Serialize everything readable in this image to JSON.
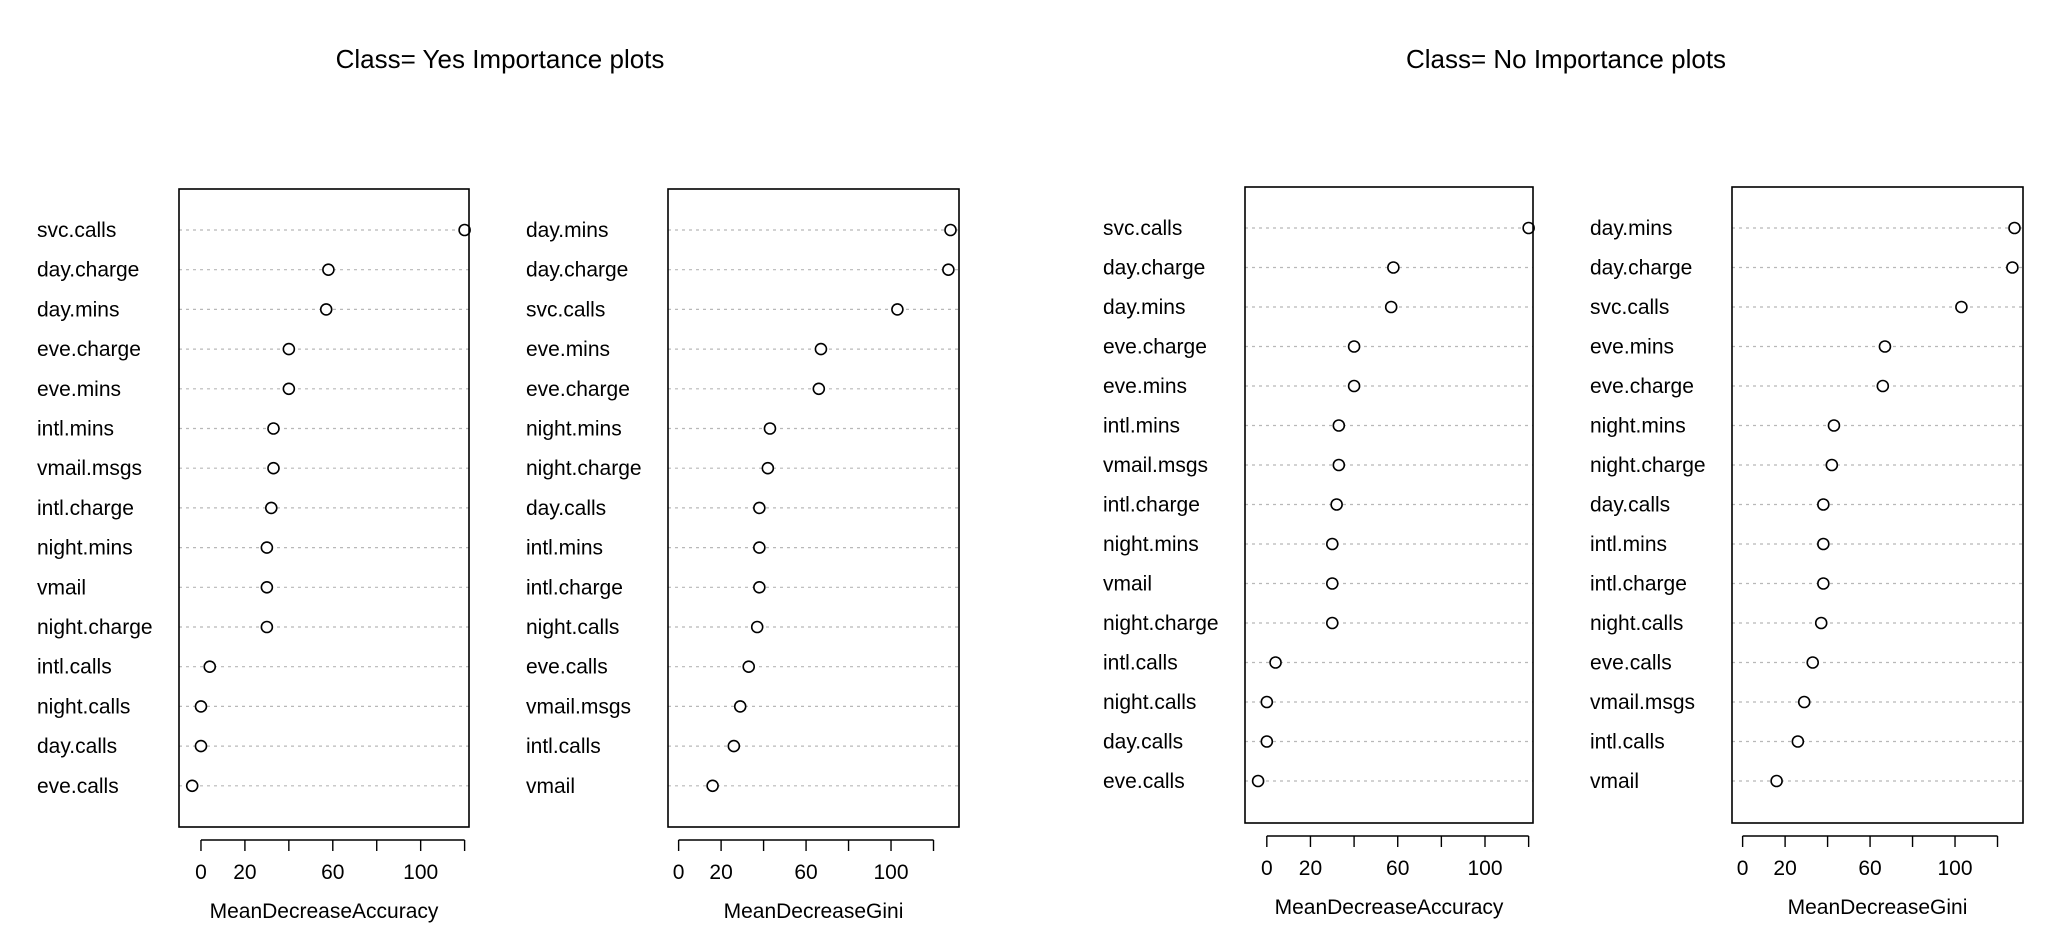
{
  "titles": [
    "Class= Yes Importance plots",
    "Class= No Importance plots"
  ],
  "chart_data": [
    {
      "type": "scatter",
      "group": "Class= Yes Importance plots",
      "xlabel": "MeanDecreaseAccuracy",
      "ylabel": "",
      "xlim": [
        -10,
        122
      ],
      "xticks": [
        0,
        20,
        60,
        100
      ],
      "grid": "dotted horizontal",
      "categories": [
        "svc.calls",
        "day.charge",
        "day.mins",
        "eve.charge",
        "eve.mins",
        "intl.mins",
        "vmail.msgs",
        "intl.charge",
        "night.mins",
        "vmail",
        "night.charge",
        "intl.calls",
        "night.calls",
        "day.calls",
        "eve.calls"
      ],
      "values": [
        120,
        58,
        57,
        40,
        40,
        33,
        33,
        32,
        30,
        30,
        30,
        4,
        0,
        0,
        -4
      ]
    },
    {
      "type": "scatter",
      "group": "Class= Yes Importance plots",
      "xlabel": "MeanDecreaseGini",
      "ylabel": "",
      "xlim": [
        -5,
        132
      ],
      "xticks": [
        0,
        20,
        60,
        100
      ],
      "grid": "dotted horizontal",
      "categories": [
        "day.mins",
        "day.charge",
        "svc.calls",
        "eve.mins",
        "eve.charge",
        "night.mins",
        "night.charge",
        "day.calls",
        "intl.mins",
        "intl.charge",
        "night.calls",
        "eve.calls",
        "vmail.msgs",
        "intl.calls",
        "vmail"
      ],
      "values": [
        128,
        127,
        103,
        67,
        66,
        43,
        42,
        38,
        38,
        38,
        37,
        33,
        29,
        26,
        16
      ]
    },
    {
      "type": "scatter",
      "group": "Class= No Importance plots",
      "xlabel": "MeanDecreaseAccuracy",
      "ylabel": "",
      "xlim": [
        -10,
        122
      ],
      "xticks": [
        0,
        20,
        60,
        100
      ],
      "grid": "dotted horizontal",
      "categories": [
        "svc.calls",
        "day.charge",
        "day.mins",
        "eve.charge",
        "eve.mins",
        "intl.mins",
        "vmail.msgs",
        "intl.charge",
        "night.mins",
        "vmail",
        "night.charge",
        "intl.calls",
        "night.calls",
        "day.calls",
        "eve.calls"
      ],
      "values": [
        120,
        58,
        57,
        40,
        40,
        33,
        33,
        32,
        30,
        30,
        30,
        4,
        0,
        0,
        -4
      ]
    },
    {
      "type": "scatter",
      "group": "Class= No Importance plots",
      "xlabel": "MeanDecreaseGini",
      "ylabel": "",
      "xlim": [
        -5,
        132
      ],
      "xticks": [
        0,
        20,
        60,
        100
      ],
      "grid": "dotted horizontal",
      "categories": [
        "day.mins",
        "day.charge",
        "svc.calls",
        "eve.mins",
        "eve.charge",
        "night.mins",
        "night.charge",
        "day.calls",
        "intl.mins",
        "intl.charge",
        "night.calls",
        "eve.calls",
        "vmail.msgs",
        "intl.calls",
        "vmail"
      ],
      "values": [
        128,
        127,
        103,
        67,
        66,
        43,
        42,
        38,
        38,
        38,
        37,
        33,
        29,
        26,
        16
      ]
    }
  ]
}
